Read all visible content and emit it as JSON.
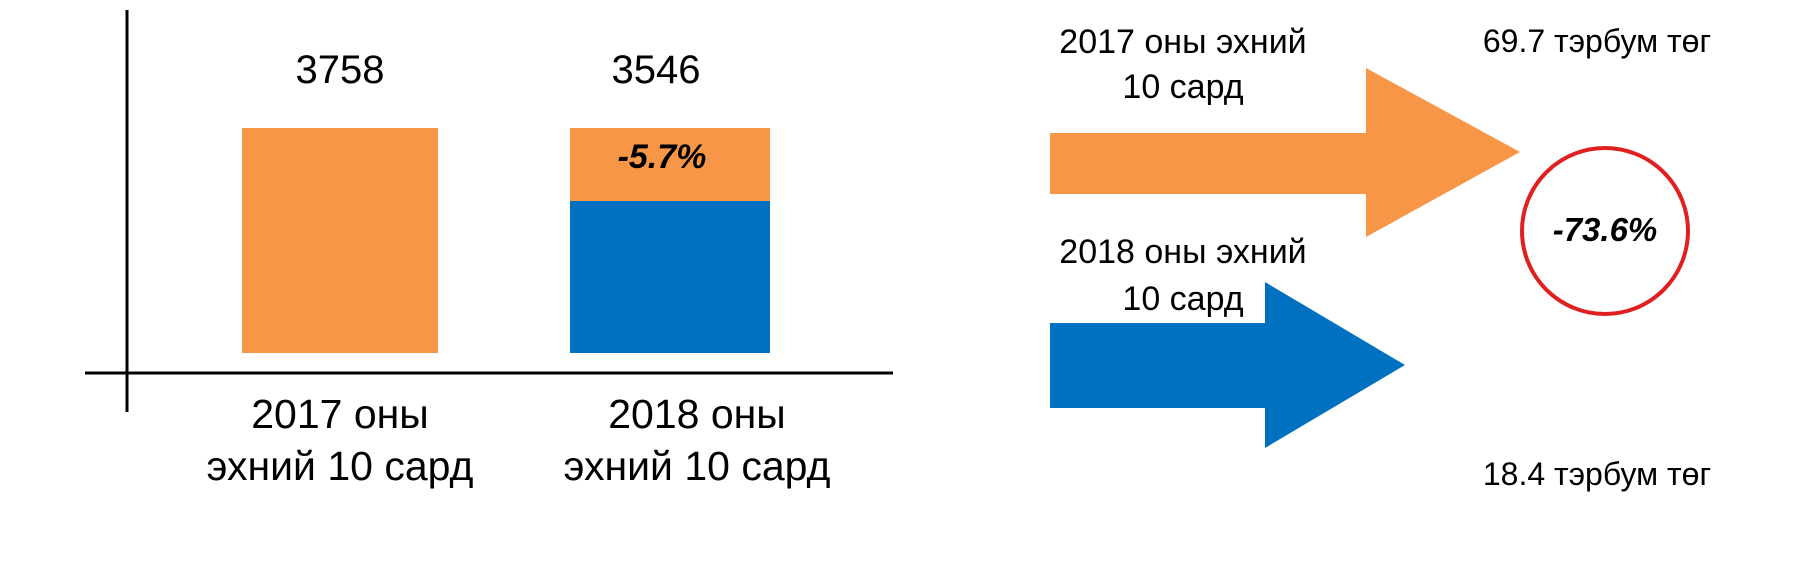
{
  "chart_data": [
    {
      "type": "bar",
      "title": "",
      "xlabel": "",
      "ylabel": "",
      "categories": [
        "2017 оны эхний 10 сард",
        "2018 оны эхний 10 сард"
      ],
      "category_lines": [
        [
          "2017 оны",
          "эхний 10 сард"
        ],
        [
          "2018 оны",
          "эхний 10 сард"
        ]
      ],
      "values": [
        3758,
        3546
      ],
      "value_labels": [
        "3758",
        "3546"
      ],
      "ylim": [
        0,
        4400
      ],
      "grid": false,
      "legend": "none",
      "change_label": "-5.7%",
      "colors": {
        "bar_2017": "#F79646",
        "bar_2018": "#0070C0",
        "change_band": "#F79646"
      }
    },
    {
      "type": "arrow-comparison",
      "items": [
        {
          "period_lines": [
            "2017 оны эхний",
            "10 сард"
          ],
          "amount": 69.7,
          "amount_label": "69.7 тэрбум төг",
          "color": "#F79646"
        },
        {
          "period_lines": [
            "2018 оны эхний",
            "10 сард"
          ],
          "amount": 18.4,
          "amount_label": "18.4 тэрбум төг",
          "color": "#0070C0"
        }
      ],
      "change_label": "-73.6%",
      "circle_color": "#E02020"
    }
  ]
}
